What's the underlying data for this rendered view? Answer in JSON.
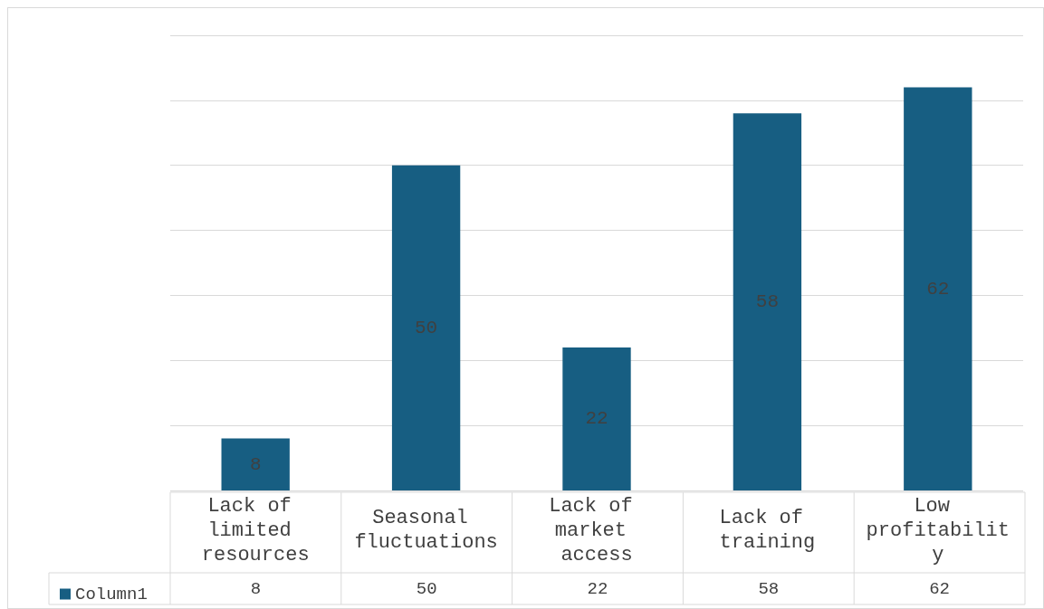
{
  "chart_data": {
    "type": "bar",
    "categories": [
      "Lack of limited resources",
      "Seasonal fluctuations",
      "Lack of market access",
      "Lack of training",
      "Low profitability"
    ],
    "series": [
      {
        "name": "Column1",
        "color": "#175e82",
        "values": [
          8,
          50,
          22,
          58,
          62
        ],
        "value_labels": [
          "8",
          "50",
          "22",
          "58",
          "62"
        ]
      }
    ],
    "ylim": [
      0,
      70
    ],
    "yticks": [
      {
        "value": 0,
        "label": null
      },
      {
        "value": 10,
        "label": null
      },
      {
        "value": 20,
        "label": null
      },
      {
        "value": 30,
        "label": null
      },
      {
        "value": 40,
        "label": null
      },
      {
        "value": 50,
        "label": null
      },
      {
        "value": 60,
        "label": null
      },
      {
        "value": 70,
        "label": null
      }
    ],
    "grid": "y",
    "tick_labels": "x",
    "data_labels": true,
    "legend": "bottom left"
  }
}
